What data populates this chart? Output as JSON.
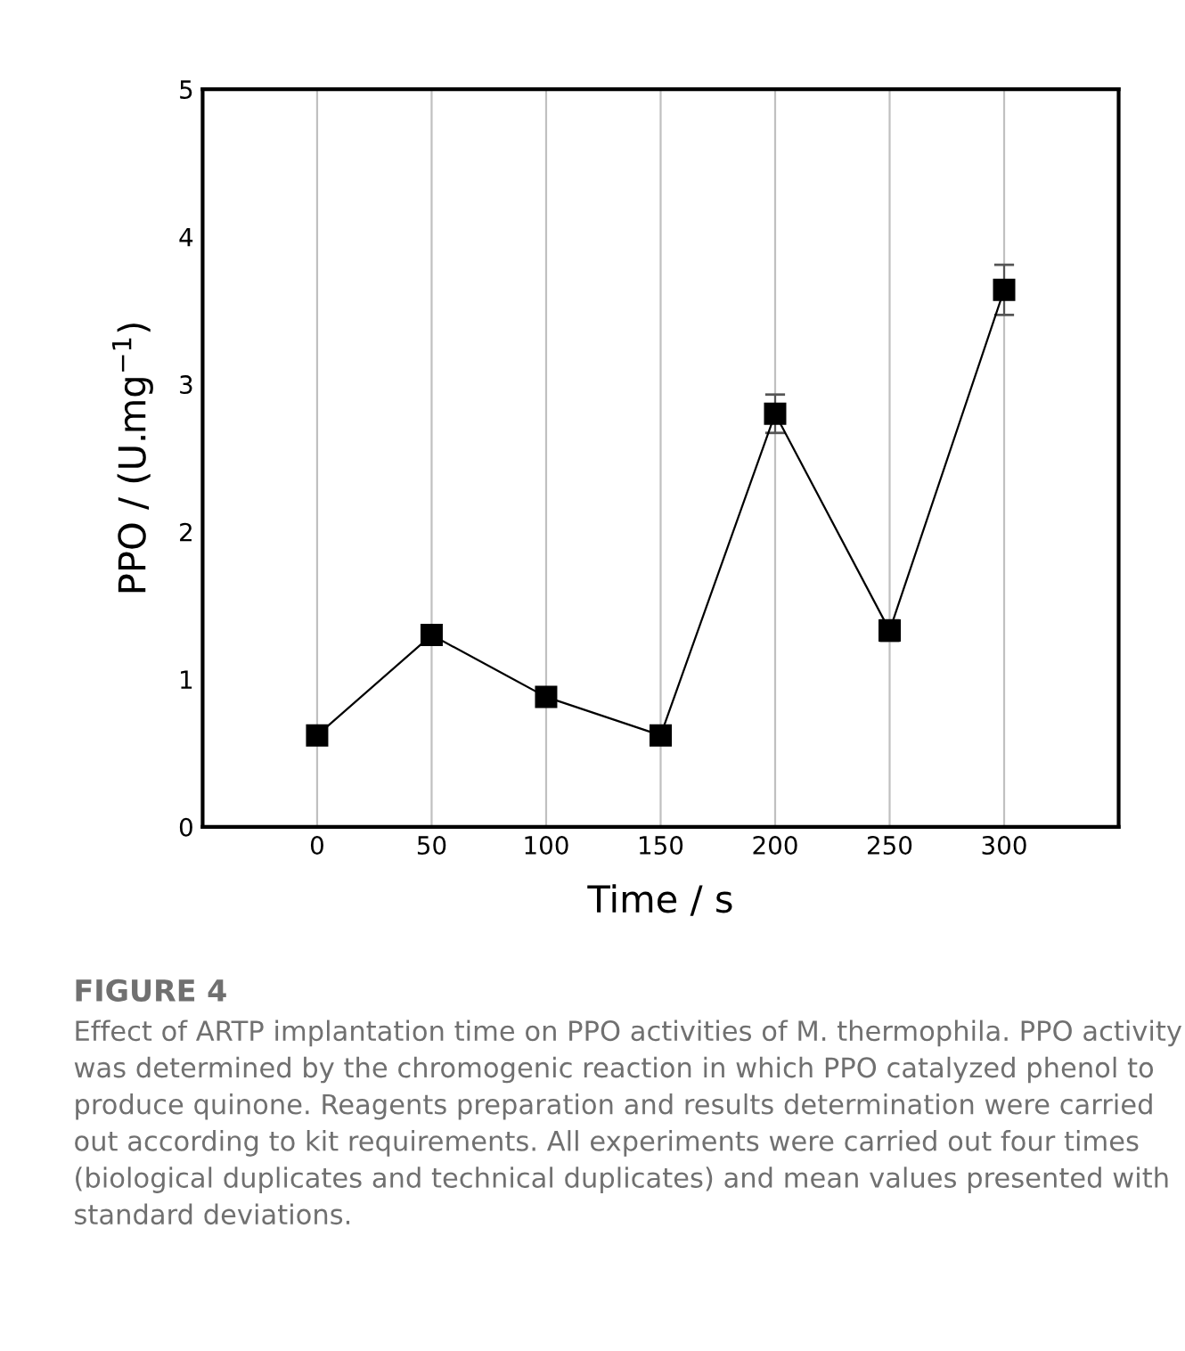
{
  "chart_data": {
    "type": "line",
    "title": "FIGURE 4",
    "xlabel": "Time / s",
    "ylabel": "PPO / (U.mg$^{−1}$)",
    "x": [
      0,
      50,
      100,
      150,
      200,
      250,
      300
    ],
    "series": [
      {
        "color": "#000000",
        "values": [
          0.62,
          1.3,
          0.88,
          0.62,
          2.8,
          1.33,
          3.64
        ],
        "errors": [
          null,
          0.04,
          null,
          null,
          0.13,
          0.07,
          0.17
        ]
      }
    ],
    "xlim": [
      -50,
      350
    ],
    "xticks": [
      0,
      50,
      100,
      150,
      200,
      250,
      300
    ],
    "ylim": [
      0,
      5
    ],
    "yticks": [
      0,
      1,
      2,
      3,
      4,
      5
    ],
    "grid": "x",
    "marker": "square",
    "line_style": "solid",
    "legend": false,
    "annotations": [
      "Effect of ARTP implantation time on PPO activities of M. thermophila. PPO activity was determined by the chromogenic reaction in which PPO catalyzed phenol to produce quinone. Reagents preparation and results determination were carried out according to kit requirements. All experiments were carried out four times (biological duplicates and technical duplicates) and mean values presented with standard deviations."
    ]
  }
}
